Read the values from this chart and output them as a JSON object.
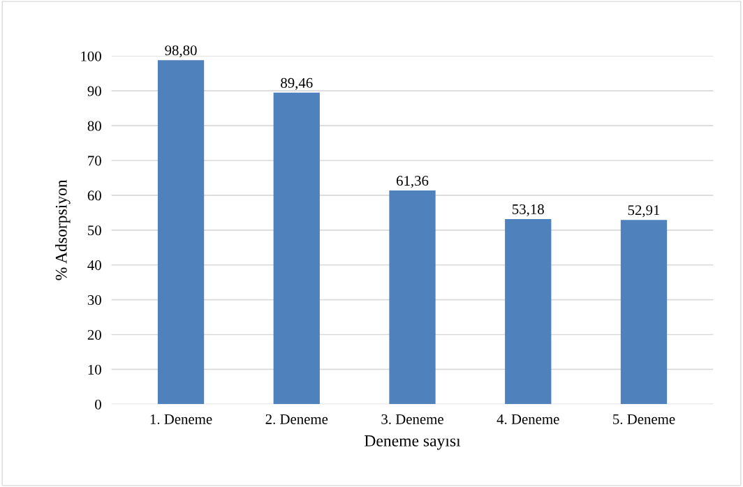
{
  "chart_data": {
    "type": "bar",
    "xlabel": "Deneme sayısı",
    "ylabel": "% Adsorpsiyon",
    "categories": [
      "1. Deneme",
      "2. Deneme",
      "3. Deneme",
      "4. Deneme",
      "5. Deneme"
    ],
    "values": [
      98.8,
      89.46,
      61.36,
      53.18,
      52.91
    ],
    "value_labels": [
      "98,80",
      "89,46",
      "61,36",
      "53,18",
      "52,91"
    ],
    "color": "#4f81bd",
    "ylim": [
      0,
      100
    ],
    "yticks": [
      0,
      10,
      20,
      30,
      40,
      50,
      60,
      70,
      80,
      90,
      100
    ],
    "grid": "y",
    "legend": false
  }
}
